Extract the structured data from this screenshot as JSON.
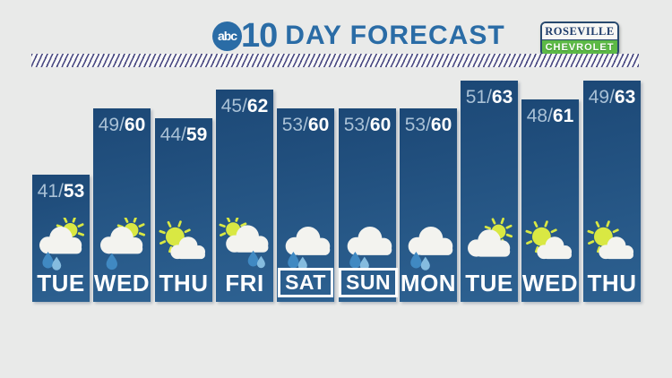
{
  "header": {
    "logo_abc": "abc",
    "logo_number": "10",
    "title": "DAY FORECAST"
  },
  "sponsor": {
    "line1": "ROSEVILLE",
    "line2": "CHEVROLET"
  },
  "separator": "/",
  "colors": {
    "brand_blue": "#2a6ca6",
    "bar_top": "#1c4876",
    "bar_bottom": "#2d6191",
    "low_temp_text": "#a9c1d6",
    "high_temp_text": "#ffffff",
    "sun": "#d9e843",
    "cloud": "#f3f3ef",
    "rain_drop_dark": "#4089c2",
    "rain_drop_light": "#85bcdf",
    "sponsor_green": "#5cb946",
    "sponsor_navy": "#27496e",
    "hatch_stripe": "#4a4a82",
    "background": "#e9eae9"
  },
  "chart_data": {
    "type": "bar",
    "title": "10 DAY FORECAST",
    "categories": [
      "TUE",
      "WED",
      "THU",
      "FRI",
      "SAT",
      "SUN",
      "MON",
      "TUE",
      "WED",
      "THU"
    ],
    "series": [
      {
        "name": "low_temp_f",
        "values": [
          41,
          49,
          44,
          45,
          53,
          53,
          53,
          51,
          48,
          49
        ]
      },
      {
        "name": "high_temp_f",
        "values": [
          53,
          60,
          59,
          62,
          60,
          60,
          60,
          63,
          61,
          63
        ]
      }
    ],
    "conditions": [
      "cloud-sun-rain-2",
      "cloud-sun-rain-1",
      "sun-cloud",
      "sun-cloud-rain",
      "cloud-rain",
      "cloud-rain",
      "cloud-rain",
      "cloud-sun",
      "sun-cloud",
      "sun-cloud"
    ],
    "weekend_boxed": [
      false,
      false,
      false,
      false,
      true,
      true,
      false,
      false,
      false,
      false
    ],
    "ylim": [
      53,
      63
    ],
    "grid": false,
    "legend_position": "none",
    "bar_height_encodes": "high_temp_f"
  }
}
